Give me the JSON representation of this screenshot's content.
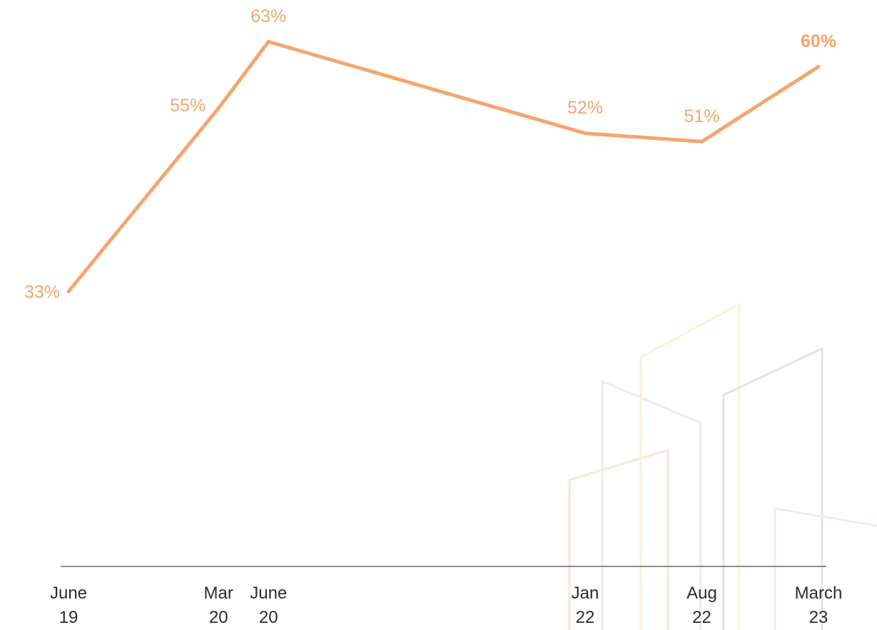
{
  "chart_data": {
    "type": "line",
    "x": [
      "June 19",
      "Mar 20",
      "June 20",
      "Jan 22",
      "Aug 22",
      "March 23"
    ],
    "series": [
      {
        "color": "#f4a66e",
        "values": [
          33,
          55,
          63,
          52,
          51,
          60
        ],
        "value_labels": [
          "33%",
          "55%",
          "63%",
          "52%",
          "51%",
          "60%"
        ]
      }
    ],
    "ylim": [
      0,
      68
    ]
  }
}
